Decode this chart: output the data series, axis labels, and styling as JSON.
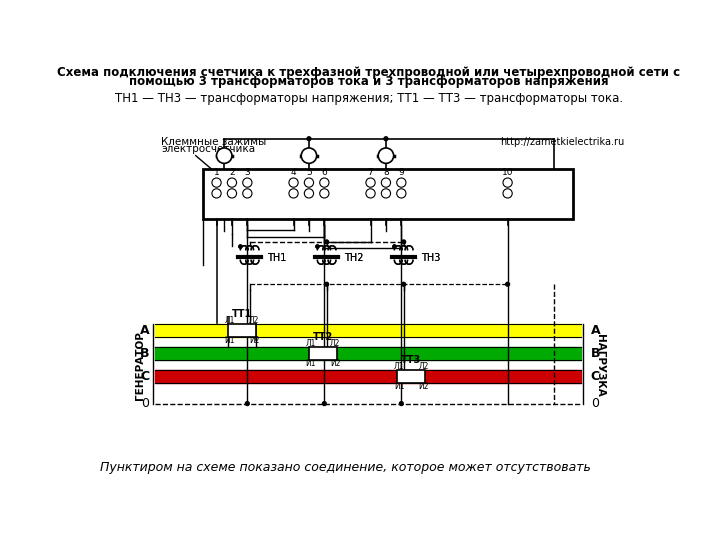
{
  "title_line1": "Схема подключения счетчика к трехфазной трехпроводной или четырехпроводной сети с",
  "title_line2": "помощью 3 трансформаторов тока и 3 трансформаторов напряжения",
  "subtitle": "ТН1 — ТН3 — трансформаторы напряжения; ТТ1 — ТТ3 — трансформаторы тока.",
  "footer": "Пунктиром на схеме показано соединение, которое может отсутствовать",
  "label_клеммные": "Клеммные зажимы",
  "label_электросчетчика": "электросчетчика",
  "label_url": "http://zametkielectrika.ru",
  "label_generator": "ГЕНЕРАТОР",
  "label_load": "НАГРУЗКА",
  "color_A": "#ffff00",
  "color_B": "#00aa00",
  "color_C": "#cc0000",
  "bg_color": "#ffffff"
}
